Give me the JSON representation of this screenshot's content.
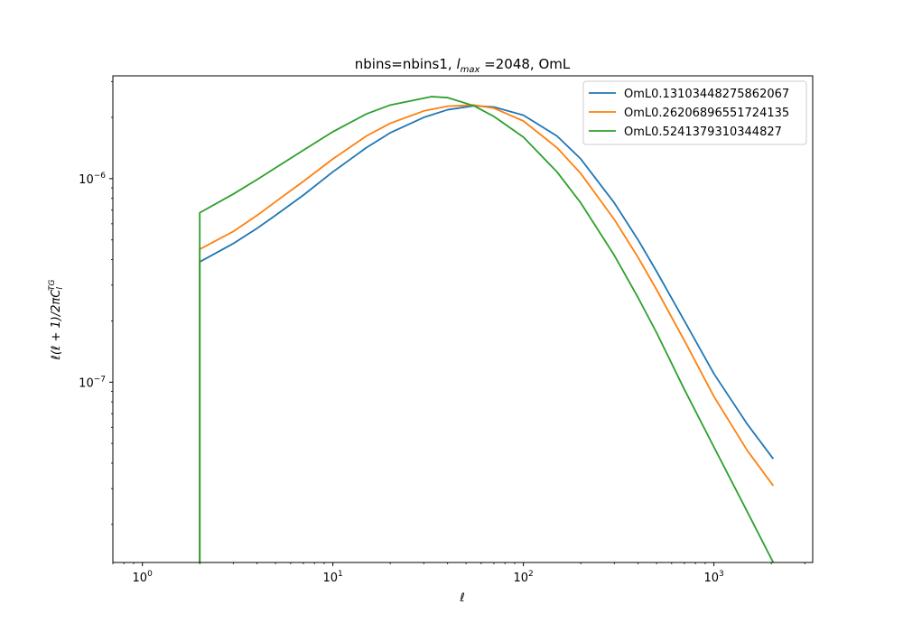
{
  "chart_data": {
    "type": "line",
    "title": "nbins=nbins1, l_max =2048, OmL",
    "title_parts": {
      "prefix": "nbins=nbins1, ",
      "l": "l",
      "max": "max",
      "suffix": " =2048, OmL"
    },
    "xlabel": "ℓ",
    "ylabel": "ℓ(ℓ + 1)/2πC_l^TG",
    "ylabel_parts": {
      "main": "ℓ(ℓ + 1)/2πC",
      "sub": "l",
      "sup": "TG"
    },
    "xscale": "log",
    "yscale": "log",
    "xlim": [
      0.7,
      3300
    ],
    "ylim": [
      1.3e-08,
      3.2e-06
    ],
    "x_ticks": [
      {
        "value": 1,
        "base": "10",
        "exp": "0"
      },
      {
        "value": 10,
        "base": "10",
        "exp": "1"
      },
      {
        "value": 100,
        "base": "10",
        "exp": "2"
      },
      {
        "value": 1000,
        "base": "10",
        "exp": "3"
      }
    ],
    "y_ticks": [
      {
        "value": 1e-07,
        "base": "10",
        "exp": "−7"
      },
      {
        "value": 1e-06,
        "base": "10",
        "exp": "−6"
      }
    ],
    "legend_position": "upper right",
    "grid": false,
    "series": [
      {
        "name": "OmL0.13103448275862067",
        "color": "#1f77b4",
        "x": [
          2,
          2,
          3,
          4,
          5,
          7,
          10,
          15,
          20,
          30,
          40,
          55,
          70,
          100,
          150,
          200,
          300,
          400,
          500,
          700,
          1000,
          1500,
          2048
        ],
        "y": [
          1.3e-08,
          3.9e-07,
          4.8e-07,
          5.7e-07,
          6.6e-07,
          8.3e-07,
          1.08e-06,
          1.42e-06,
          1.68e-06,
          2e-06,
          2.18e-06,
          2.28e-06,
          2.25e-06,
          2.05e-06,
          1.62e-06,
          1.25e-06,
          7.6e-07,
          5e-07,
          3.5e-07,
          2e-07,
          1.1e-07,
          6.2e-08,
          4.2e-08
        ]
      },
      {
        "name": "OmL0.26206896551724135",
        "color": "#ff7f0e",
        "x": [
          2,
          2,
          3,
          4,
          5,
          7,
          10,
          15,
          20,
          30,
          40,
          55,
          70,
          100,
          150,
          200,
          300,
          400,
          500,
          700,
          1000,
          1500,
          2048
        ],
        "y": [
          1.3e-08,
          4.5e-07,
          5.5e-07,
          6.6e-07,
          7.7e-07,
          9.7e-07,
          1.25e-06,
          1.62e-06,
          1.87e-06,
          2.15e-06,
          2.27e-06,
          2.3e-06,
          2.22e-06,
          1.92e-06,
          1.42e-06,
          1.06e-06,
          6.3e-07,
          4.1e-07,
          2.85e-07,
          1.6e-07,
          8.5e-08,
          4.6e-08,
          3.1e-08
        ]
      },
      {
        "name": "OmL0.5241379310344827",
        "color": "#2ca02c",
        "x": [
          2,
          2,
          3,
          4,
          5,
          7,
          10,
          15,
          20,
          33,
          40,
          55,
          70,
          100,
          150,
          200,
          300,
          400,
          500,
          700,
          1000,
          1500,
          2048
        ],
        "y": [
          1.3e-08,
          6.8e-07,
          8.4e-07,
          9.9e-07,
          1.13e-06,
          1.38e-06,
          1.7e-06,
          2.08e-06,
          2.3e-06,
          2.53e-06,
          2.5e-06,
          2.28e-06,
          2.02e-06,
          1.6e-06,
          1.08e-06,
          7.6e-07,
          4.2e-07,
          2.6e-07,
          1.75e-07,
          9.2e-08,
          4.8e-08,
          2.3e-08,
          1.3e-08
        ]
      }
    ]
  }
}
